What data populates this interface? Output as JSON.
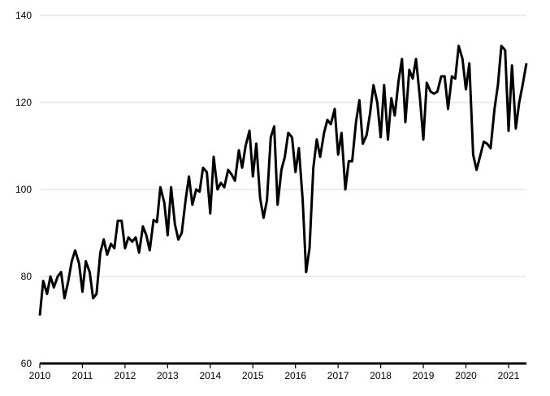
{
  "chart_data": {
    "type": "line",
    "title": "",
    "xlabel": "",
    "ylabel": "",
    "xlim": [
      2010,
      2021.42
    ],
    "ylim": [
      60,
      140
    ],
    "grid": true,
    "y_ticks": [
      60,
      80,
      100,
      120,
      140
    ],
    "x_ticks": [
      2010,
      2011,
      2012,
      2013,
      2014,
      2015,
      2016,
      2017,
      2018,
      2019,
      2020,
      2021
    ],
    "x_tick_labels": [
      "2010",
      "2011",
      "2012",
      "2013",
      "2014",
      "2015",
      "2016",
      "2017",
      "2018",
      "2019",
      "2020",
      "2021"
    ],
    "y_tick_labels": [
      "60",
      "80",
      "100",
      "120",
      "140"
    ],
    "series": [
      {
        "values": [
          [
            2010.0,
            71.0
          ],
          [
            2010.08,
            79.0
          ],
          [
            2010.17,
            76.0
          ],
          [
            2010.25,
            80.0
          ],
          [
            2010.33,
            77.5
          ],
          [
            2010.42,
            80.0
          ],
          [
            2010.5,
            81.0
          ],
          [
            2010.58,
            75.0
          ],
          [
            2010.67,
            79.0
          ],
          [
            2010.75,
            83.5
          ],
          [
            2010.83,
            86.0
          ],
          [
            2010.92,
            83.0
          ],
          [
            2011.0,
            76.5
          ],
          [
            2011.08,
            83.5
          ],
          [
            2011.17,
            81.0
          ],
          [
            2011.25,
            75.0
          ],
          [
            2011.33,
            76.0
          ],
          [
            2011.42,
            85.5
          ],
          [
            2011.5,
            88.5
          ],
          [
            2011.58,
            85.0
          ],
          [
            2011.67,
            87.5
          ],
          [
            2011.75,
            86.5
          ],
          [
            2011.83,
            92.8
          ],
          [
            2011.92,
            92.8
          ],
          [
            2012.0,
            86.5
          ],
          [
            2012.08,
            89.0
          ],
          [
            2012.17,
            88.0
          ],
          [
            2012.25,
            89.0
          ],
          [
            2012.33,
            85.5
          ],
          [
            2012.42,
            91.5
          ],
          [
            2012.5,
            89.5
          ],
          [
            2012.58,
            86.0
          ],
          [
            2012.67,
            93.0
          ],
          [
            2012.75,
            92.5
          ],
          [
            2012.83,
            100.5
          ],
          [
            2012.92,
            97.0
          ],
          [
            2013.0,
            89.5
          ],
          [
            2013.08,
            100.5
          ],
          [
            2013.17,
            92.0
          ],
          [
            2013.25,
            88.5
          ],
          [
            2013.33,
            90.0
          ],
          [
            2013.42,
            97.5
          ],
          [
            2013.5,
            103.0
          ],
          [
            2013.58,
            96.5
          ],
          [
            2013.67,
            100.0
          ],
          [
            2013.75,
            99.5
          ],
          [
            2013.83,
            105.0
          ],
          [
            2013.92,
            104.0
          ],
          [
            2014.0,
            94.5
          ],
          [
            2014.08,
            107.5
          ],
          [
            2014.17,
            100.0
          ],
          [
            2014.25,
            101.5
          ],
          [
            2014.33,
            100.5
          ],
          [
            2014.42,
            104.5
          ],
          [
            2014.5,
            103.5
          ],
          [
            2014.58,
            102.0
          ],
          [
            2014.67,
            109.0
          ],
          [
            2014.75,
            105.0
          ],
          [
            2014.83,
            110.0
          ],
          [
            2014.92,
            113.5
          ],
          [
            2015.0,
            103.0
          ],
          [
            2015.08,
            110.5
          ],
          [
            2015.17,
            98.0
          ],
          [
            2015.25,
            93.5
          ],
          [
            2015.33,
            97.5
          ],
          [
            2015.42,
            112.0
          ],
          [
            2015.5,
            114.5
          ],
          [
            2015.58,
            96.5
          ],
          [
            2015.67,
            104.5
          ],
          [
            2015.75,
            107.5
          ],
          [
            2015.83,
            113.0
          ],
          [
            2015.92,
            112.0
          ],
          [
            2016.0,
            104.0
          ],
          [
            2016.08,
            109.5
          ],
          [
            2016.17,
            97.5
          ],
          [
            2016.25,
            81.0
          ],
          [
            2016.33,
            86.5
          ],
          [
            2016.42,
            105.0
          ],
          [
            2016.5,
            111.5
          ],
          [
            2016.58,
            107.5
          ],
          [
            2016.67,
            113.0
          ],
          [
            2016.75,
            116.0
          ],
          [
            2016.83,
            115.0
          ],
          [
            2016.92,
            118.5
          ],
          [
            2017.0,
            108.0
          ],
          [
            2017.08,
            113.0
          ],
          [
            2017.17,
            100.0
          ],
          [
            2017.25,
            106.5
          ],
          [
            2017.33,
            106.5
          ],
          [
            2017.42,
            115.5
          ],
          [
            2017.5,
            120.5
          ],
          [
            2017.58,
            110.5
          ],
          [
            2017.67,
            112.5
          ],
          [
            2017.75,
            117.5
          ],
          [
            2017.83,
            124.0
          ],
          [
            2017.92,
            120.0
          ],
          [
            2018.0,
            112.0
          ],
          [
            2018.08,
            124.0
          ],
          [
            2018.17,
            111.5
          ],
          [
            2018.25,
            121.0
          ],
          [
            2018.33,
            117.0
          ],
          [
            2018.42,
            125.0
          ],
          [
            2018.5,
            130.0
          ],
          [
            2018.58,
            115.5
          ],
          [
            2018.67,
            127.5
          ],
          [
            2018.75,
            125.5
          ],
          [
            2018.83,
            130.0
          ],
          [
            2018.92,
            121.0
          ],
          [
            2019.0,
            111.5
          ],
          [
            2019.08,
            124.5
          ],
          [
            2019.17,
            122.5
          ],
          [
            2019.25,
            122.0
          ],
          [
            2019.33,
            122.5
          ],
          [
            2019.42,
            126.0
          ],
          [
            2019.5,
            126.0
          ],
          [
            2019.58,
            118.5
          ],
          [
            2019.67,
            126.0
          ],
          [
            2019.75,
            125.5
          ],
          [
            2019.83,
            133.0
          ],
          [
            2019.92,
            130.0
          ],
          [
            2020.0,
            123.0
          ],
          [
            2020.08,
            129.0
          ],
          [
            2020.17,
            108.0
          ],
          [
            2020.25,
            104.5
          ],
          [
            2020.33,
            107.5
          ],
          [
            2020.42,
            111.0
          ],
          [
            2020.5,
            110.5
          ],
          [
            2020.58,
            109.5
          ],
          [
            2020.67,
            118.5
          ],
          [
            2020.75,
            124.0
          ],
          [
            2020.83,
            133.0
          ],
          [
            2020.92,
            132.0
          ],
          [
            2021.0,
            113.5
          ],
          [
            2021.08,
            128.5
          ],
          [
            2021.17,
            114.0
          ],
          [
            2021.25,
            120.0
          ],
          [
            2021.33,
            124.0
          ],
          [
            2021.42,
            129.0
          ]
        ]
      }
    ]
  }
}
